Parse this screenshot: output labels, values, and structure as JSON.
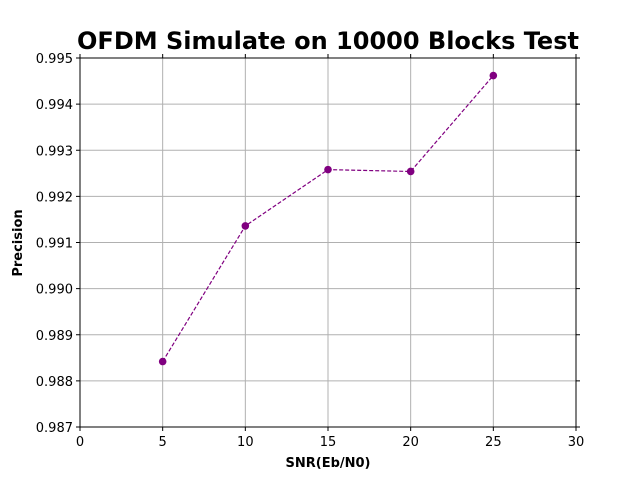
{
  "chart_data": {
    "type": "line",
    "title": "OFDM Simulate on 10000 Blocks Test",
    "xlabel": "SNR(Eb/N0)",
    "ylabel": "Precision",
    "xlim": [
      0,
      30
    ],
    "ylim": [
      0.987,
      0.995
    ],
    "xticks": [
      0,
      5,
      10,
      15,
      20,
      25,
      30
    ],
    "yticks": [
      0.987,
      0.988,
      0.989,
      0.99,
      0.991,
      0.992,
      0.993,
      0.994,
      0.995
    ],
    "ytick_labels": [
      "0.987",
      "0.988",
      "0.989",
      "0.990",
      "0.991",
      "0.992",
      "0.993",
      "0.994",
      "0.995"
    ],
    "grid": true,
    "series": [
      {
        "x": [
          5,
          10,
          15,
          20,
          25
        ],
        "y": [
          0.98842,
          0.99136,
          0.99258,
          0.99254,
          0.99462
        ],
        "color": "#800080",
        "line_style": "dashed",
        "marker": "circle"
      }
    ]
  }
}
